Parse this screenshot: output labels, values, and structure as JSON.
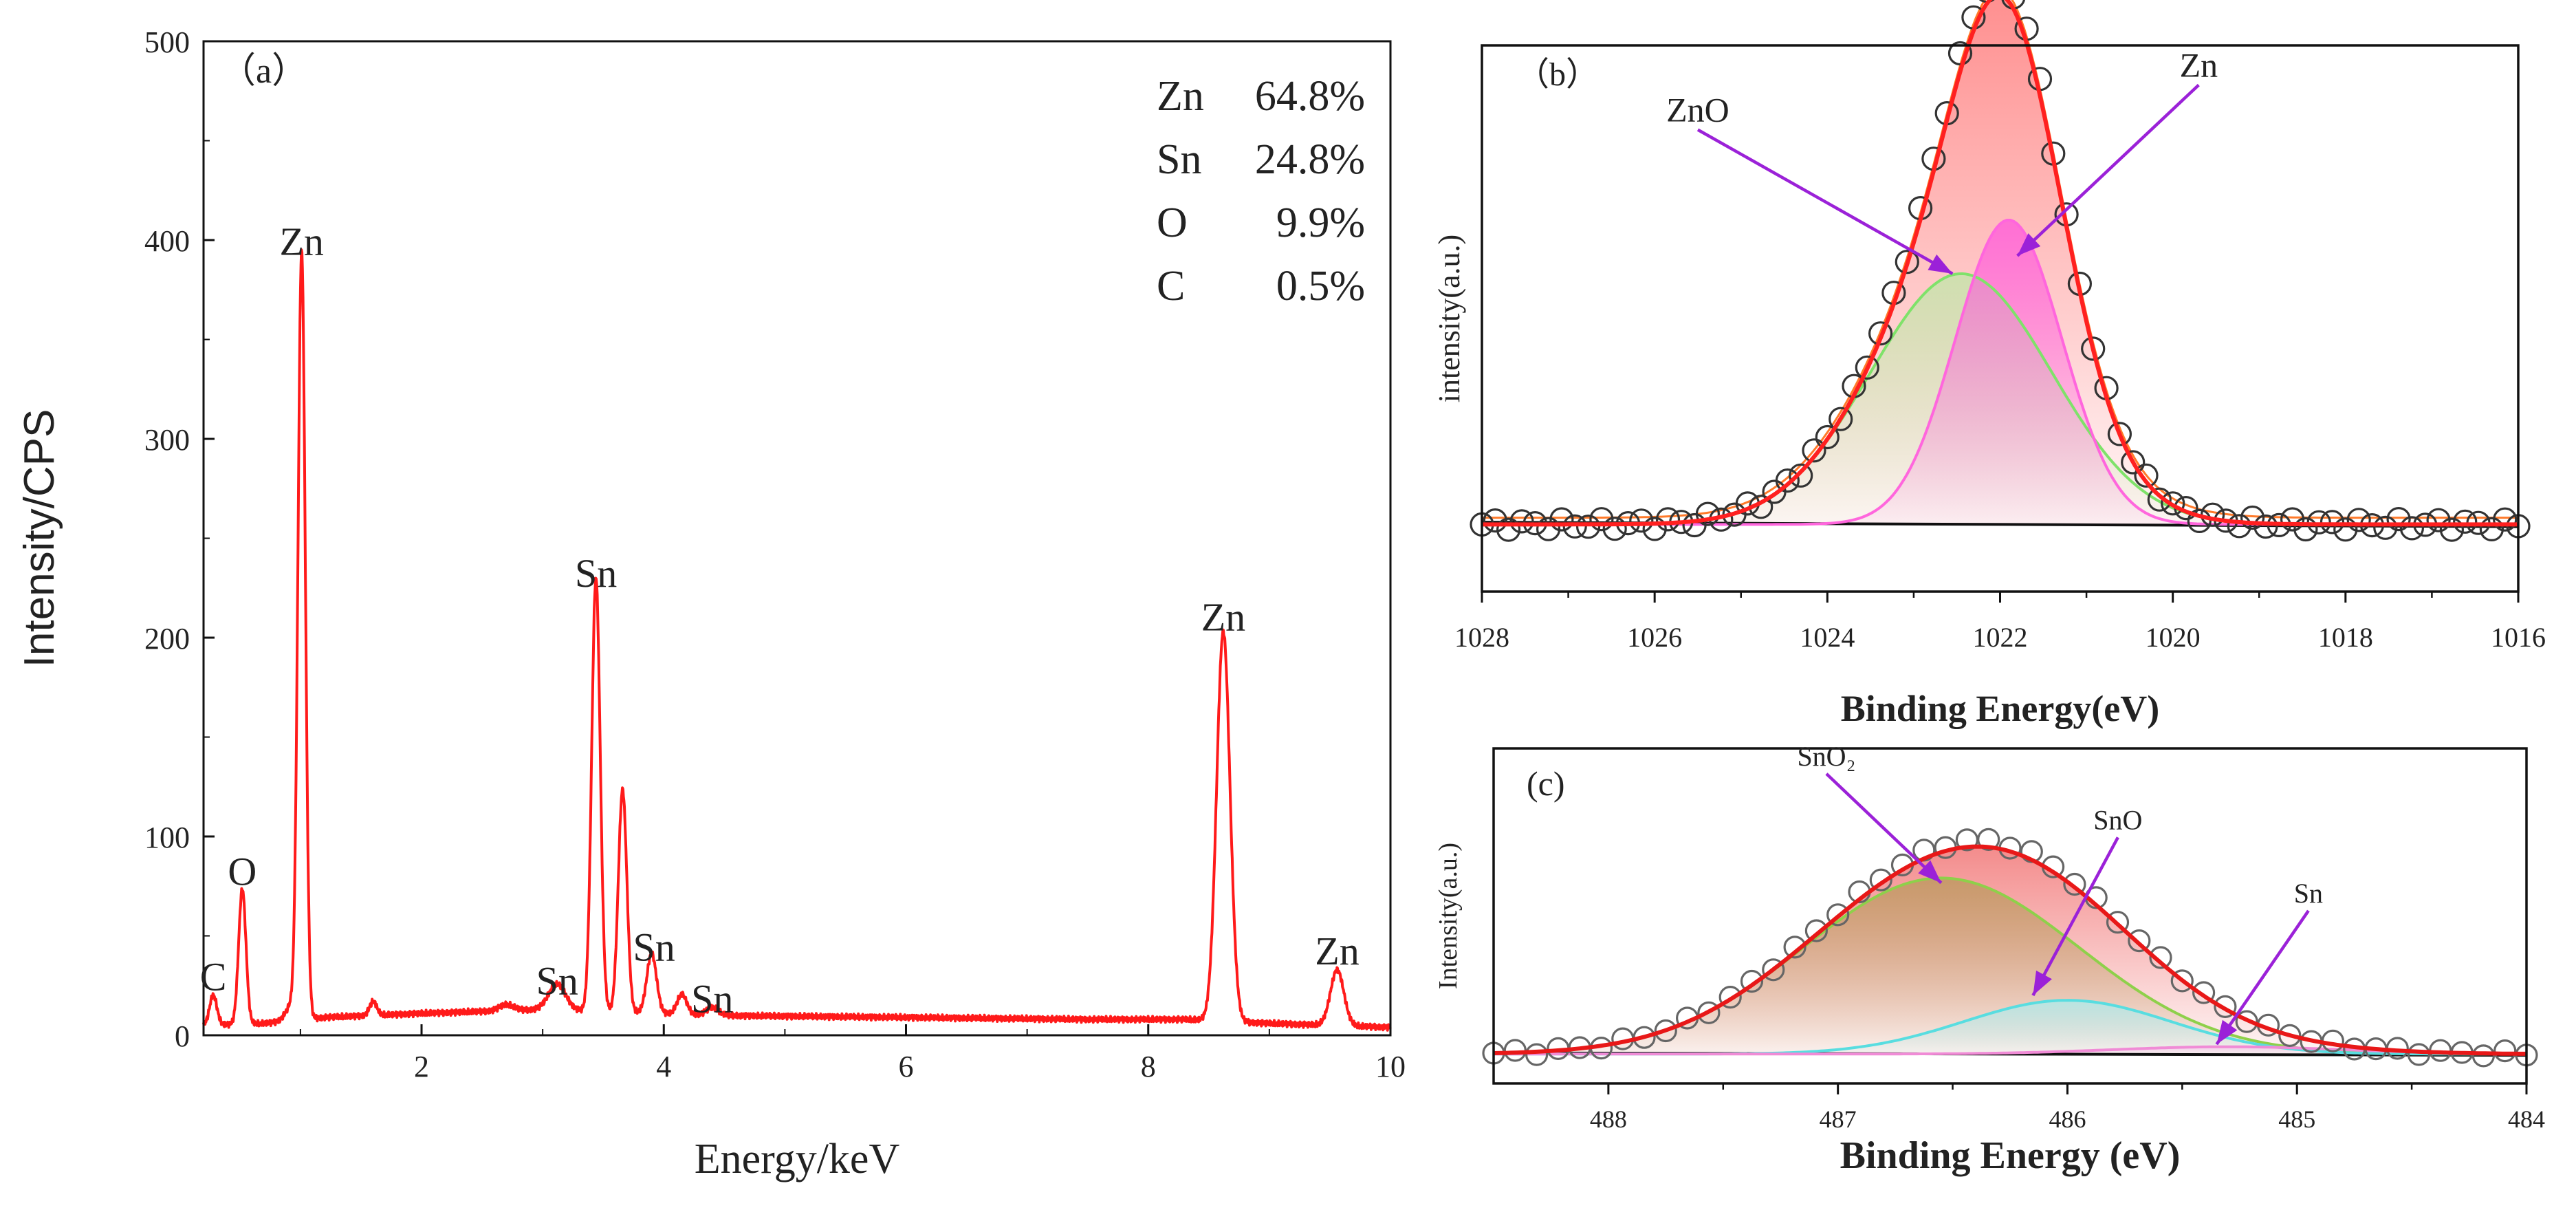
{
  "chart_data": [
    {
      "id": "a",
      "type": "line",
      "panel_label": "（a）",
      "xlabel": "Energy/keV",
      "ylabel": "Intensity/CPS",
      "xlim": [
        0.2,
        10
      ],
      "ylim": [
        0,
        500
      ],
      "xticks": [
        2,
        4,
        6,
        8,
        10
      ],
      "yticks": [
        0,
        100,
        200,
        300,
        400,
        500
      ],
      "series_color": "#ff1a1a",
      "peaks": [
        {
          "x": 0.28,
          "y": 15,
          "w": 0.03
        },
        {
          "x": 0.52,
          "y": 68,
          "w": 0.03
        },
        {
          "x": 0.93,
          "y": 8,
          "w": 0.05
        },
        {
          "x": 1.01,
          "y": 385,
          "w": 0.03
        },
        {
          "x": 1.6,
          "y": 7,
          "w": 0.03
        },
        {
          "x": 2.7,
          "y": 3,
          "w": 0.06
        },
        {
          "x": 3.12,
          "y": 13,
          "w": 0.07
        },
        {
          "x": 3.44,
          "y": 218,
          "w": 0.035
        },
        {
          "x": 3.66,
          "y": 112,
          "w": 0.035
        },
        {
          "x": 3.9,
          "y": 30,
          "w": 0.04
        },
        {
          "x": 4.15,
          "y": 10,
          "w": 0.04
        },
        {
          "x": 4.4,
          "y": 4,
          "w": 0.05
        },
        {
          "x": 8.62,
          "y": 196,
          "w": 0.055
        },
        {
          "x": 9.56,
          "y": 28,
          "w": 0.055
        }
      ],
      "baseline": [
        [
          0.2,
          5
        ],
        [
          0.7,
          6
        ],
        [
          1.2,
          9
        ],
        [
          2.0,
          11
        ],
        [
          3.0,
          13
        ],
        [
          4.4,
          10
        ],
        [
          6.0,
          9
        ],
        [
          7.5,
          8
        ],
        [
          8.3,
          8
        ],
        [
          9.0,
          6
        ],
        [
          10.0,
          4
        ]
      ],
      "peak_labels": [
        {
          "text": "C",
          "x": 0.28,
          "y": 15
        },
        {
          "text": "O",
          "x": 0.52,
          "y": 68
        },
        {
          "text": "Zn",
          "x": 1.01,
          "y": 385
        },
        {
          "text": "Sn",
          "x": 3.12,
          "y": 13
        },
        {
          "text": "Sn",
          "x": 3.44,
          "y": 218
        },
        {
          "text": "Sn",
          "x": 3.92,
          "y": 30
        },
        {
          "text": "Sn",
          "x": 4.4,
          "y": 4
        },
        {
          "text": "Zn",
          "x": 8.62,
          "y": 196
        },
        {
          "text": "Zn",
          "x": 9.56,
          "y": 28
        }
      ],
      "composition": [
        {
          "element": "Zn",
          "value": "64.8%"
        },
        {
          "element": "Sn",
          "value": "24.8%"
        },
        {
          "element": "O",
          "value": "9.9%"
        },
        {
          "element": "C",
          "value": "0.5%"
        }
      ]
    },
    {
      "id": "b",
      "type": "scatter",
      "panel_label": "（b）",
      "xlabel": "Binding Energy(eV)",
      "ylabel": "intensity(a.u.)",
      "xlim": [
        1028,
        1016
      ],
      "xticks": [
        1028,
        1026,
        1024,
        1022,
        1020,
        1018,
        1016
      ],
      "ylim": [
        -0.15,
        1.07
      ],
      "components": [
        {
          "name": "ZnO",
          "center": 1022.45,
          "sigma": 1.05,
          "amp": 0.56,
          "color": "#7fe26a",
          "fill": "#bfe8a8"
        },
        {
          "name": "Zn",
          "center": 1021.9,
          "sigma": 0.62,
          "amp": 0.68,
          "color": "#ff66dd",
          "fill": "#ff55dd"
        }
      ],
      "fit_color": "#ff2020",
      "bg_fit_color": "#ff7a2a",
      "baseline_color": "#111111",
      "marker_color": "#333333",
      "annotations": [
        {
          "text": "ZnO",
          "target_x": 1022.55,
          "target_y": 0.56,
          "label_x": 1025.5,
          "label_y": 0.9
        },
        {
          "text": "Zn",
          "target_x": 1021.8,
          "target_y": 0.6,
          "label_x": 1019.7,
          "label_y": 1.0
        }
      ]
    },
    {
      "id": "c",
      "type": "scatter",
      "panel_label": "(c)",
      "xlabel": "Binding Energy (eV)",
      "ylabel": "Intensity(a.u.)",
      "xlim": [
        488.5,
        484
      ],
      "xticks": [
        488,
        487,
        486,
        485,
        484
      ],
      "ylim": [
        -0.12,
        1.25
      ],
      "components": [
        {
          "name": "SnO₂",
          "center": 486.55,
          "sigma": 0.6,
          "amp": 0.72,
          "color": "#8ed04a",
          "fill": "#b8995a"
        },
        {
          "name": "SnO",
          "center": 486.0,
          "sigma": 0.45,
          "amp": 0.22,
          "color": "#58dde0",
          "fill": "#a8eef0"
        },
        {
          "name": "Sn",
          "center": 485.3,
          "sigma": 0.5,
          "amp": 0.03,
          "color": "#f08bd6",
          "fill": "#f6c6ec"
        }
      ],
      "fit_color": "#e81818",
      "baseline_color": "#111111",
      "marker_color": "#666666",
      "annotations": [
        {
          "text": "SnO₂",
          "target_x": 486.55,
          "target_y": 0.7,
          "label_x": 487.05,
          "label_y": 1.18
        },
        {
          "text": "SnO",
          "target_x": 486.15,
          "target_y": 0.24,
          "label_x": 485.78,
          "label_y": 0.92
        },
        {
          "text": "Sn",
          "target_x": 485.35,
          "target_y": 0.04,
          "label_x": 484.95,
          "label_y": 0.62
        }
      ]
    }
  ]
}
